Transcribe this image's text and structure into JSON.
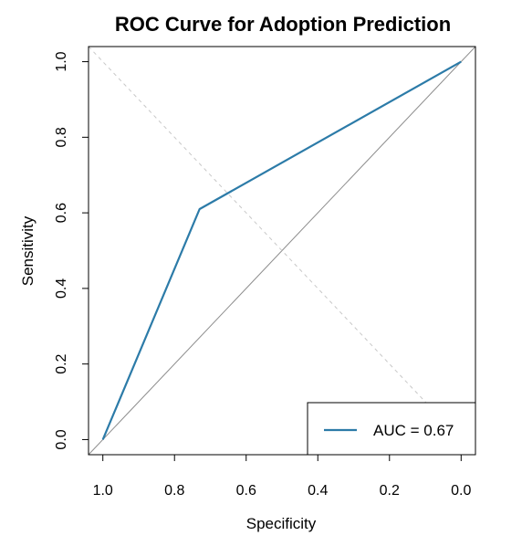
{
  "chart_data": {
    "type": "line",
    "title": "ROC Curve for Adoption Prediction",
    "xlabel": "Specificity",
    "ylabel": "Sensitivity",
    "xlim": [
      1.04,
      -0.04
    ],
    "ylim": [
      -0.04,
      1.04
    ],
    "x_reversed": true,
    "x_ticks": [
      1.0,
      0.8,
      0.6,
      0.4,
      0.2,
      0.0
    ],
    "x_tick_labels": [
      "1.0",
      "0.8",
      "0.6",
      "0.4",
      "0.2",
      "0.0"
    ],
    "y_ticks": [
      0.0,
      0.2,
      0.4,
      0.6,
      0.8,
      1.0
    ],
    "y_tick_labels": [
      "0.0",
      "0.2",
      "0.4",
      "0.6",
      "0.8",
      "1.0"
    ],
    "series": [
      {
        "name": "AUC = 0.67",
        "color": "#2C7BA8",
        "x": [
          1.0,
          0.73,
          0.0
        ],
        "y": [
          0.0,
          0.61,
          1.0
        ]
      }
    ],
    "reference_lines": [
      {
        "kind": "chance-diagonal",
        "color": "#8c8c8c",
        "style": "solid"
      },
      {
        "kind": "specificity-equals-sensitivity",
        "color": "#c8c8c8",
        "style": "dashed"
      }
    ],
    "legend": {
      "position": "bottom-right",
      "label": "AUC = 0.67"
    },
    "grid": false
  }
}
